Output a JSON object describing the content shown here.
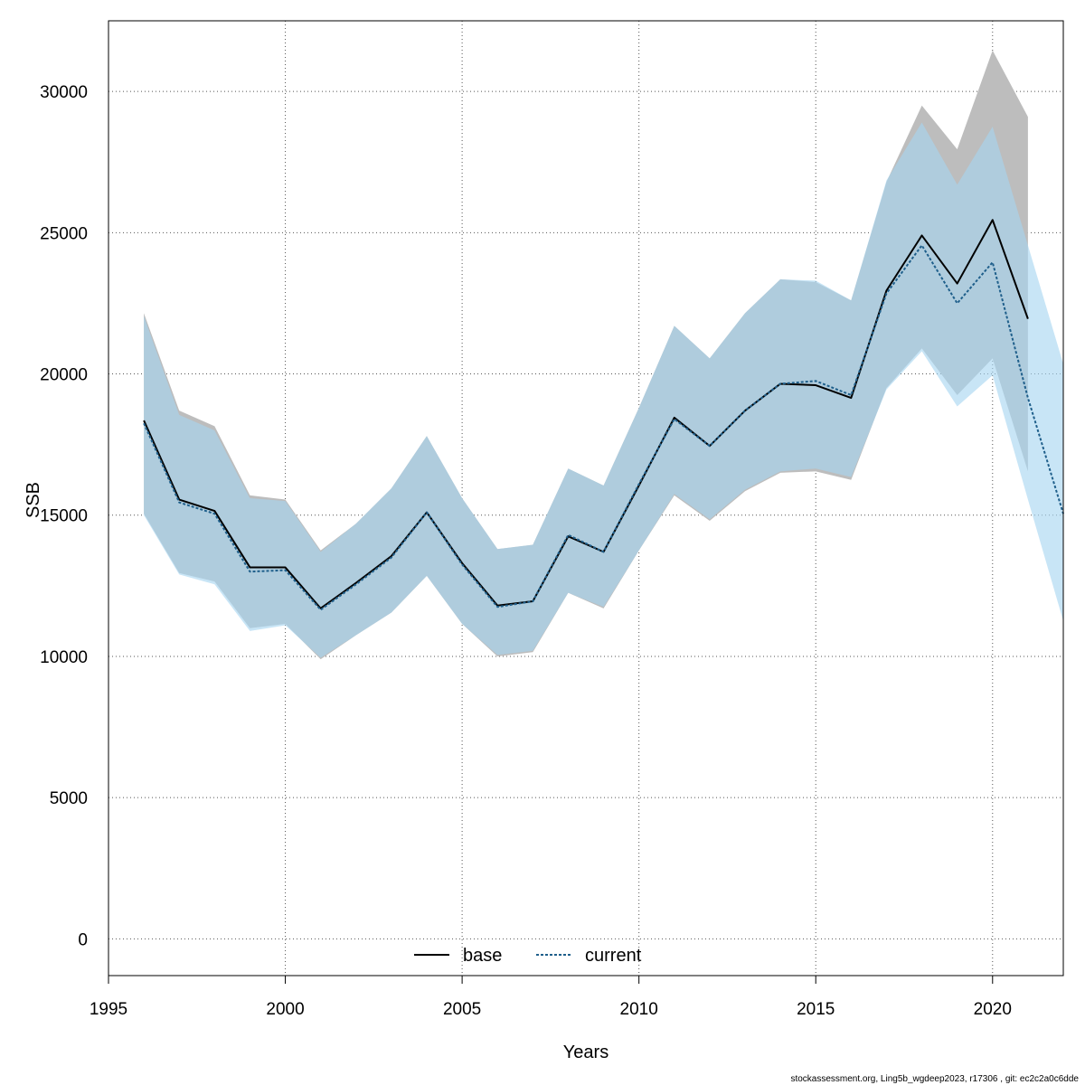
{
  "chart_data": {
    "type": "area",
    "title": "",
    "xlabel": "Years",
    "ylabel": "SSB",
    "xlim": [
      1995,
      2022
    ],
    "ylim": [
      -1300,
      32500
    ],
    "x_ticks": [
      "1995",
      "2000",
      "2005",
      "2010",
      "2015",
      "2020"
    ],
    "y_ticks": [
      "0",
      "5000",
      "10000",
      "15000",
      "20000",
      "25000",
      "30000"
    ],
    "grid": true,
    "legend_position": "bottom-center",
    "series": [
      {
        "name": "base",
        "line_style": "solid",
        "line_color": "#000000",
        "band_color": "#bdbdbd",
        "x": [
          1996,
          1997,
          1998,
          1999,
          2000,
          2001,
          2002,
          2003,
          2004,
          2005,
          2006,
          2007,
          2008,
          2009,
          2010,
          2011,
          2012,
          2013,
          2014,
          2015,
          2016,
          2017,
          2018,
          2019,
          2020,
          2021
        ],
        "values": [
          18350,
          15550,
          15150,
          13150,
          13150,
          11700,
          12600,
          13550,
          15100,
          13300,
          11800,
          11950,
          14250,
          13700,
          16050,
          18450,
          17450,
          18700,
          19650,
          19600,
          19150,
          22950,
          24900,
          23200,
          25450,
          21950
        ],
        "upper": [
          22150,
          18700,
          18150,
          15700,
          15550,
          13750,
          14700,
          15950,
          17800,
          15600,
          13800,
          13950,
          16650,
          16050,
          18800,
          21700,
          20550,
          22150,
          23350,
          23250,
          22600,
          26800,
          29500,
          27950,
          31450,
          29100
        ],
        "lower": [
          15050,
          12950,
          12650,
          11000,
          11150,
          9900,
          10750,
          11550,
          12850,
          11150,
          10000,
          10150,
          12250,
          11700,
          13750,
          15700,
          14800,
          15850,
          16500,
          16550,
          16250,
          19500,
          20900,
          19250,
          20550,
          16550
        ]
      },
      {
        "name": "current",
        "line_style": "dotted",
        "line_color": "#1f5f8b",
        "band_color": "#a6d5f0",
        "x": [
          1996,
          1997,
          1998,
          1999,
          2000,
          2001,
          2002,
          2003,
          2004,
          2005,
          2006,
          2007,
          2008,
          2009,
          2010,
          2011,
          2012,
          2013,
          2014,
          2015,
          2016,
          2017,
          2018,
          2019,
          2020,
          2021,
          2022
        ],
        "values": [
          18250,
          15450,
          15050,
          13000,
          13050,
          11650,
          12550,
          13500,
          15100,
          13250,
          11750,
          11950,
          14300,
          13700,
          16100,
          18400,
          17450,
          18700,
          19650,
          19750,
          19250,
          22850,
          24550,
          22500,
          23950,
          19150,
          15050
        ],
        "upper": [
          22050,
          18550,
          18000,
          15600,
          15500,
          13700,
          14700,
          15950,
          17800,
          15600,
          13800,
          13950,
          16650,
          16050,
          18800,
          21700,
          20550,
          22150,
          23350,
          23300,
          22600,
          26850,
          28900,
          26700,
          28750,
          24550,
          20350
        ],
        "lower": [
          15000,
          12900,
          12550,
          10900,
          11100,
          9950,
          10750,
          11550,
          12850,
          11150,
          10050,
          10200,
          12250,
          11750,
          13750,
          15750,
          14850,
          15900,
          16550,
          16650,
          16350,
          19450,
          20800,
          18850,
          19950,
          15550,
          11250
        ]
      }
    ]
  },
  "legend": {
    "base_label": "base",
    "current_label": "current"
  },
  "footer": {
    "text": "stockassessment.org, Ling5b_wgdeep2023, r17306 , git: ec2c2a0c6dde"
  }
}
